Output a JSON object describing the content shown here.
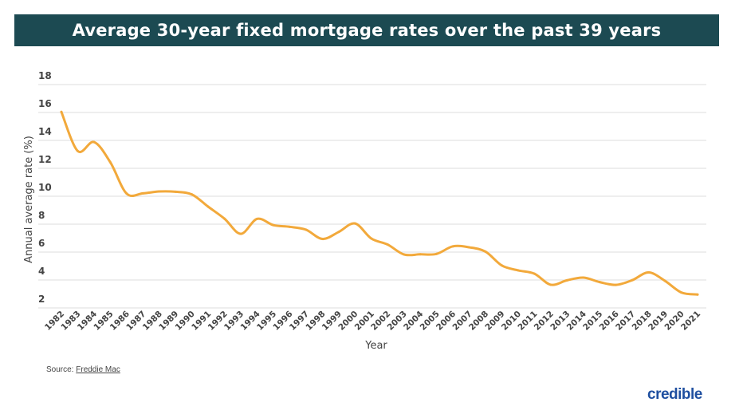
{
  "chart_data": {
    "type": "line",
    "title": "Average 30-year fixed mortgage rates over the past 39 years",
    "xlabel": "Year",
    "ylabel": "Annual average rate (%)",
    "ylim": [
      2,
      18
    ],
    "yticks": [
      2,
      4,
      6,
      8,
      10,
      12,
      14,
      16,
      18
    ],
    "grid": true,
    "line_color": "#f2a93b",
    "categories": [
      "1982",
      "1983",
      "1984",
      "1985",
      "1986",
      "1987",
      "1988",
      "1989",
      "1990",
      "1991",
      "1992",
      "1993",
      "1994",
      "1995",
      "1996",
      "1997",
      "1998",
      "1999",
      "2000",
      "2001",
      "2002",
      "2003",
      "2004",
      "2005",
      "2006",
      "2007",
      "2008",
      "2009",
      "2010",
      "2011",
      "2012",
      "2013",
      "2014",
      "2015",
      "2016",
      "2017",
      "2018",
      "2019",
      "2020",
      "2021"
    ],
    "values": [
      16.04,
      13.24,
      13.88,
      12.43,
      10.19,
      10.21,
      10.34,
      10.32,
      10.13,
      9.25,
      8.39,
      7.31,
      8.38,
      7.93,
      7.81,
      7.6,
      6.94,
      7.44,
      8.05,
      6.97,
      6.54,
      5.83,
      5.84,
      5.87,
      6.41,
      6.34,
      6.03,
      5.04,
      4.69,
      4.45,
      3.66,
      3.98,
      4.17,
      3.85,
      3.65,
      3.99,
      4.54,
      3.94,
      3.11,
      2.96
    ]
  },
  "source": {
    "label": "Source:",
    "link": "Freddie Mac"
  },
  "logo": "credible",
  "colors": {
    "title_bar": "#1c4a52",
    "line": "#f2a93b",
    "grid": "#e3e3e3"
  }
}
